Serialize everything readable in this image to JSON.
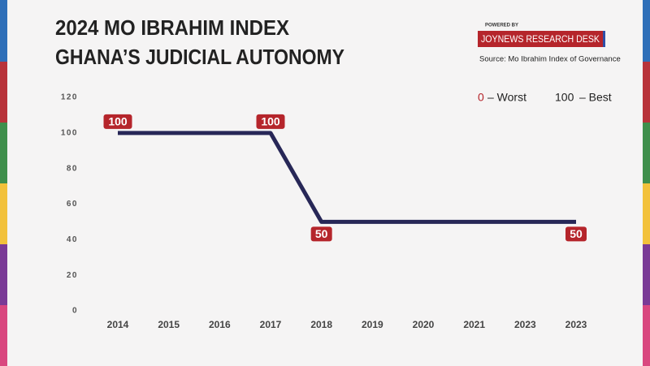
{
  "chart_data": {
    "type": "line",
    "title": "2024 MO IBRAHIM INDEX",
    "subtitle": "GHANA’S JUDICIAL AUTONOMY",
    "powered_by": "POWERED BY",
    "brand": "JOYNEWS RESEARCH DESK",
    "source": "Source: Mo Ibrahim Index of Governance",
    "scale_note": [
      {
        "number": 0,
        "text": "– Worst"
      },
      {
        "number": 100,
        "text": "– Best"
      }
    ],
    "categories": [
      "2014",
      "2015",
      "2016",
      "2017",
      "2018",
      "2019",
      "2020",
      "2021",
      "2023",
      "2023"
    ],
    "values": [
      100,
      100,
      100,
      100,
      50,
      50,
      50,
      50,
      50,
      50
    ],
    "value_labels": [
      "100",
      null,
      null,
      "100",
      "50",
      null,
      null,
      null,
      null,
      "50"
    ],
    "color": "#272757",
    "label_color": "#b5252b",
    "ylim": [
      0,
      120
    ],
    "yticks": [
      0,
      20,
      40,
      60,
      80,
      100,
      120
    ],
    "grid": false
  }
}
